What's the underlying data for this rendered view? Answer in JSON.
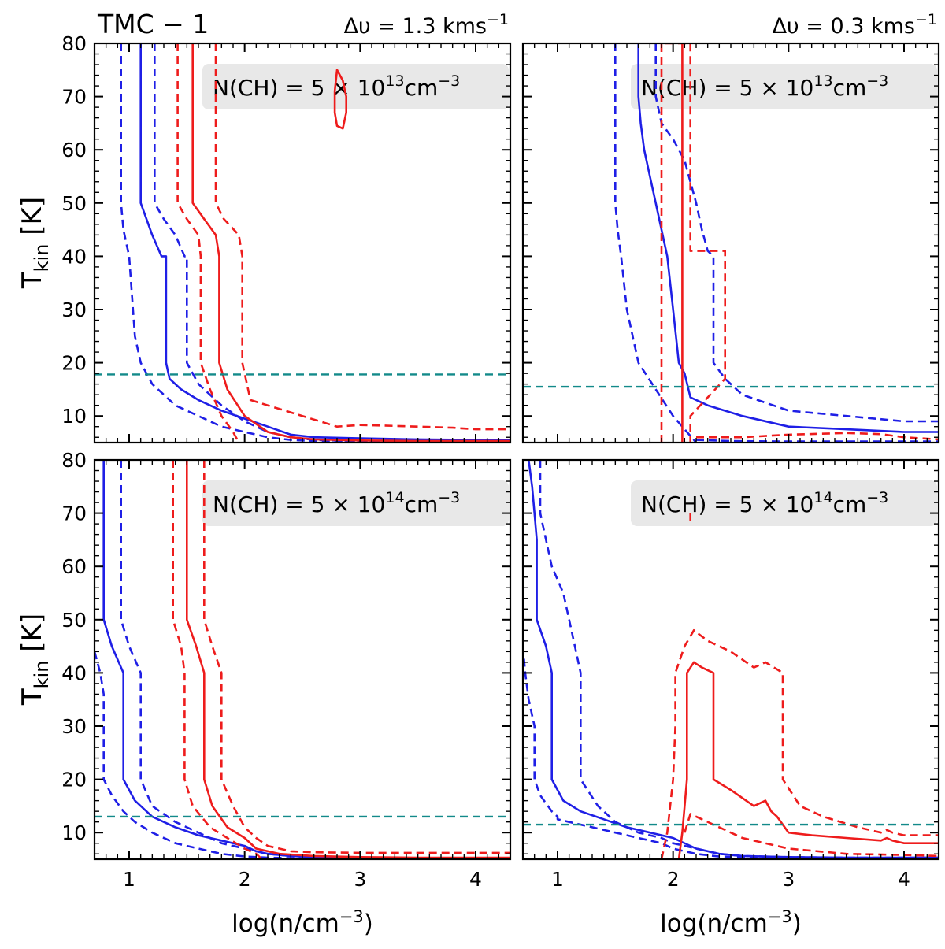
{
  "figure_title": "TMC − 1",
  "xlabel": "log(n/cm",
  "xlabel_sup": "−3",
  "xlabel_close": ")",
  "ylabel": "T",
  "ylabel_sub": "kin",
  "ylabel_unit": " [K]",
  "column_titles": [
    {
      "prefix": "Δυ = 1.3 kms",
      "sup": "−1"
    },
    {
      "prefix": "Δυ = 0.3 kms",
      "sup": "−1"
    }
  ],
  "colors": {
    "blue": "#1f1fe6",
    "red": "#ee1c1c",
    "teal": "#138a8a",
    "label_box": "#e8e8e8"
  },
  "chart_data": [
    {
      "type": "line",
      "panel": "top-left",
      "label": {
        "prefix": "N(CH) = 5 × 10",
        "sup": "13",
        "suffix": "cm",
        "sup2": "−3"
      },
      "xlim": [
        0.7,
        4.3
      ],
      "ylim": [
        5,
        80
      ],
      "xticks": [],
      "yticks": [
        10,
        20,
        30,
        40,
        50,
        60,
        70,
        80
      ],
      "hline": 17.8,
      "series": [
        {
          "color": "blue",
          "style": "dashed",
          "x": [
            0.93,
            0.93,
            0.95,
            1.0,
            1.05,
            1.1,
            1.2,
            1.4,
            1.6,
            1.8,
            2.0,
            2.2,
            2.4,
            2.6,
            3.0,
            3.5,
            4.0,
            4.3
          ],
          "y": [
            80,
            50,
            45,
            40,
            25,
            20,
            16,
            12,
            10,
            8,
            7,
            6,
            5.5,
            5.3,
            5.2,
            5.1,
            5.1,
            5.1
          ]
        },
        {
          "color": "blue",
          "style": "solid",
          "x": [
            1.1,
            1.1,
            1.15,
            1.2,
            1.28,
            1.32,
            1.32,
            1.35,
            1.45,
            1.6,
            1.8,
            2.0,
            2.2,
            2.4,
            2.6,
            3.0,
            3.5,
            4.0,
            4.3
          ],
          "y": [
            80,
            50,
            47,
            44,
            40,
            40,
            20,
            17,
            15,
            13,
            11,
            9.5,
            8,
            6.5,
            6,
            5.8,
            5.6,
            5.5,
            5.5
          ]
        },
        {
          "color": "blue",
          "style": "dashed",
          "x": [
            1.22,
            1.22,
            1.3,
            1.4,
            1.48,
            1.5,
            1.5,
            1.6,
            1.8,
            2.0,
            2.2,
            2.4,
            2.6,
            3.0,
            3.5,
            4.0,
            4.3
          ],
          "y": [
            80,
            50,
            47,
            44,
            40,
            40,
            20,
            16,
            12,
            9,
            7,
            6,
            5.5,
            5.3,
            5.2,
            5.2,
            5.2
          ]
        },
        {
          "color": "red",
          "style": "dashed",
          "x": [
            1.42,
            1.42,
            1.5,
            1.6,
            1.62,
            1.62,
            1.7,
            1.8,
            1.9,
            1.95
          ],
          "y": [
            80,
            50,
            47,
            44,
            40,
            20,
            15,
            10,
            7,
            5
          ]
        },
        {
          "color": "red",
          "style": "solid",
          "x": [
            1.55,
            1.55,
            1.65,
            1.75,
            1.78,
            1.78,
            1.85,
            2.0,
            2.2,
            2.4,
            2.6,
            3.0,
            3.5,
            4.0,
            4.3
          ],
          "y": [
            80,
            50,
            47,
            44,
            40,
            20,
            15,
            10,
            7,
            6,
            5.6,
            5.4,
            5.3,
            5.3,
            5.3
          ]
        },
        {
          "color": "red",
          "style": "dashed",
          "x": [
            1.75,
            1.75,
            1.82,
            1.95,
            1.98,
            1.98,
            2.05,
            2.2,
            2.5,
            2.8,
            3.0,
            3.2,
            3.5,
            3.8,
            4.0,
            4.3
          ],
          "y": [
            80,
            50,
            47,
            44,
            40,
            20,
            13,
            12,
            10,
            8,
            8.3,
            8.2,
            8,
            7.8,
            7.5,
            7.5
          ]
        },
        {
          "color": "red",
          "style": "solid",
          "closed": true,
          "x": [
            2.8,
            2.85,
            2.88,
            2.88,
            2.85,
            2.8,
            2.78,
            2.78,
            2.8
          ],
          "y": [
            75,
            73,
            70,
            67,
            64,
            64.5,
            67,
            71,
            75
          ]
        }
      ]
    },
    {
      "type": "line",
      "panel": "top-right",
      "label": {
        "prefix": "N(CH) = 5 × 10",
        "sup": "13",
        "suffix": "cm",
        "sup2": "−3"
      },
      "xlim": [
        0.7,
        4.3
      ],
      "ylim": [
        5,
        80
      ],
      "xticks": [],
      "yticks": [],
      "hline": 15.5,
      "series": [
        {
          "color": "blue",
          "style": "dashed",
          "x": [
            1.5,
            1.5,
            1.52,
            1.55,
            1.6,
            1.7,
            1.85,
            2.0,
            2.2
          ],
          "y": [
            80,
            50,
            45,
            40,
            30,
            20,
            15,
            10,
            5
          ]
        },
        {
          "color": "blue",
          "style": "solid",
          "x": [
            1.7,
            1.7,
            1.72,
            1.75,
            1.8,
            1.85,
            1.9,
            1.95,
            2.0,
            2.05,
            2.1,
            2.15,
            2.3,
            2.6,
            3.0,
            3.5,
            4.0,
            4.3
          ],
          "y": [
            80,
            70,
            65,
            60,
            55,
            50,
            45,
            40,
            30,
            20,
            18,
            13.5,
            12,
            10,
            8,
            7.5,
            7,
            7
          ]
        },
        {
          "color": "blue",
          "style": "dashed",
          "x": [
            1.85,
            1.85,
            1.9,
            2.0,
            2.1,
            2.2,
            2.25,
            2.3,
            2.35,
            2.35,
            2.45,
            2.6,
            3.0,
            3.5,
            4.0,
            4.3
          ],
          "y": [
            80,
            70,
            65,
            62,
            58,
            50,
            45,
            41,
            40,
            20,
            17,
            14,
            11,
            10,
            9,
            9
          ]
        },
        {
          "color": "red",
          "style": "dashed",
          "x": [
            1.9,
            1.9,
            2.15,
            2.15,
            2.45,
            2.45,
            2.15,
            2.15
          ],
          "y": [
            5,
            80,
            80,
            41,
            41,
            17,
            10,
            5
          ]
        },
        {
          "color": "red",
          "style": "solid",
          "x": [
            2.08,
            2.08
          ],
          "y": [
            5,
            80
          ]
        },
        {
          "color": "blue",
          "style": "dashed",
          "x": [
            2.2,
            2.5,
            3.0,
            3.5,
            4.0,
            4.3
          ],
          "y": [
            5.5,
            5.3,
            5.2,
            5.2,
            5.2,
            5.2
          ]
        },
        {
          "color": "red",
          "style": "dashed",
          "x": [
            2.2,
            2.6,
            3.0,
            3.5,
            3.8,
            4.0,
            4.3
          ],
          "y": [
            6,
            6,
            6.5,
            6.8,
            6.6,
            6,
            5.6
          ]
        }
      ]
    },
    {
      "type": "line",
      "panel": "bottom-left",
      "label": {
        "prefix": "N(CH) = 5 × 10",
        "sup": "14",
        "suffix": "cm",
        "sup2": "−3"
      },
      "xlim": [
        0.7,
        4.3
      ],
      "ylim": [
        5,
        80
      ],
      "xticks": [
        1,
        2,
        3,
        4
      ],
      "yticks": [
        10,
        20,
        30,
        40,
        50,
        60,
        70,
        80
      ],
      "hline": 13,
      "series": [
        {
          "color": "blue",
          "style": "dashed",
          "x": [
            0.7,
            0.75,
            0.78,
            0.78,
            0.85,
            0.95,
            1.05,
            1.2,
            1.4,
            1.6,
            1.8,
            2.0,
            2.2,
            2.4,
            2.6,
            3.0,
            3.5,
            4.0,
            4.3
          ],
          "y": [
            44,
            40,
            36,
            20,
            17,
            14,
            12,
            10,
            8,
            7,
            6,
            5.5,
            5.3,
            5.2,
            5.1,
            5.1,
            5.1,
            5.1,
            5.1
          ]
        },
        {
          "color": "blue",
          "style": "solid",
          "x": [
            0.78,
            0.78,
            0.85,
            0.95,
            0.95,
            1.05,
            1.2,
            1.4,
            1.6,
            1.8,
            2.0,
            2.1,
            2.2,
            2.4,
            2.6,
            3.0,
            3.5,
            4.0,
            4.3
          ],
          "y": [
            80,
            50,
            45,
            40,
            20,
            16,
            13,
            11,
            9.5,
            8.5,
            7.5,
            6.5,
            6,
            5.6,
            5.4,
            5.3,
            5.2,
            5.2,
            5.2
          ]
        },
        {
          "color": "blue",
          "style": "dashed",
          "x": [
            0.93,
            0.93,
            1.0,
            1.1,
            1.1,
            1.2,
            1.4,
            1.6,
            1.8,
            2.0,
            2.2,
            2.4,
            2.6,
            3.0,
            3.5,
            4.0,
            4.3
          ],
          "y": [
            80,
            50,
            45,
            40,
            20,
            15,
            12,
            10,
            8,
            7,
            6,
            5.6,
            5.4,
            5.3,
            5.2,
            5.2,
            5.2
          ]
        },
        {
          "color": "red",
          "style": "dashed",
          "x": [
            1.38,
            1.38,
            1.45,
            1.48,
            1.48,
            1.55,
            1.7,
            1.85,
            2.0,
            2.1,
            2.15
          ],
          "y": [
            80,
            50,
            45,
            40,
            20,
            15,
            11,
            9,
            7,
            6,
            5
          ]
        },
        {
          "color": "red",
          "style": "solid",
          "x": [
            1.5,
            1.5,
            1.58,
            1.65,
            1.65,
            1.72,
            1.85,
            2.0,
            2.1,
            2.3,
            2.6,
            3.0,
            3.5,
            4.0,
            4.3
          ],
          "y": [
            80,
            50,
            45,
            40,
            20,
            15,
            11,
            9,
            7,
            6,
            5.6,
            5.4,
            5.3,
            5.3,
            5.3
          ]
        },
        {
          "color": "red",
          "style": "dashed",
          "x": [
            1.65,
            1.65,
            1.72,
            1.8,
            1.8,
            1.9,
            2.0,
            2.1,
            2.2,
            2.4,
            2.6,
            3.0,
            3.5,
            4.0,
            4.3
          ],
          "y": [
            80,
            50,
            45,
            40,
            20,
            15,
            11,
            9,
            7.5,
            6.5,
            6.3,
            6.2,
            6.2,
            6.2,
            6.2
          ]
        }
      ]
    },
    {
      "type": "line",
      "panel": "bottom-right",
      "label": {
        "prefix": "N(CH) = 5 × 10",
        "sup": "14",
        "suffix": "cm",
        "sup2": "−3"
      },
      "xlim": [
        0.7,
        4.3
      ],
      "ylim": [
        5,
        80
      ],
      "xticks": [
        1,
        2,
        3,
        4
      ],
      "yticks": [],
      "hline": 11.5,
      "series": [
        {
          "color": "blue",
          "style": "dashed",
          "x": [
            0.7,
            0.72,
            0.75,
            0.8,
            0.8,
            0.85,
            0.95,
            1.0,
            1.0,
            1.1,
            1.3,
            1.5,
            1.7,
            1.9,
            2.0,
            2.2,
            2.4,
            2.6,
            3.0,
            3.5,
            4.0,
            4.3
          ],
          "y": [
            45,
            40,
            35,
            30,
            20,
            17,
            14,
            13,
            12.5,
            12,
            11,
            10,
            9,
            8,
            7,
            6,
            5.5,
            5.3,
            5.2,
            5.1,
            5.1,
            5.1
          ]
        },
        {
          "color": "blue",
          "style": "solid",
          "x": [
            0.75,
            0.78,
            0.8,
            0.82,
            0.82,
            0.9,
            0.95,
            0.95,
            1.05,
            1.2,
            1.4,
            1.6,
            1.8,
            2.0,
            2.2,
            2.4,
            2.6,
            3.0,
            3.5,
            4.0,
            4.3
          ],
          "y": [
            80,
            75,
            70,
            65,
            50,
            45,
            40,
            20,
            16,
            14,
            12.5,
            11,
            10,
            9,
            7,
            6,
            5.6,
            5.4,
            5.3,
            5.3,
            5.3
          ]
        },
        {
          "color": "blue",
          "style": "dashed",
          "x": [
            0.85,
            0.85,
            0.9,
            0.95,
            1.05,
            1.1,
            1.15,
            1.2,
            1.2,
            1.35,
            1.5,
            1.7,
            1.9,
            2.0,
            2.2,
            2.4,
            2.6,
            3.0,
            3.5,
            4.0,
            4.3
          ],
          "y": [
            80,
            70,
            65,
            60,
            55,
            50,
            45,
            40,
            20,
            15,
            12,
            10,
            9,
            8,
            7,
            6,
            5.6,
            5.4,
            5.3,
            5.3,
            5.3
          ]
        },
        {
          "color": "red",
          "style": "dashed",
          "x": [
            1.9,
            1.95,
            2.0,
            2.02,
            2.02,
            2.1,
            2.18,
            2.3,
            2.5,
            2.7,
            2.8,
            2.95,
            2.95,
            3.1,
            3.3,
            3.6,
            3.8,
            3.85,
            3.9,
            4.0,
            4.3
          ],
          "y": [
            5,
            10,
            20,
            30,
            40,
            45,
            48,
            46,
            44,
            41,
            42,
            40,
            20,
            15,
            13,
            11,
            10,
            10.5,
            10,
            9.5,
            9.5
          ]
        },
        {
          "color": "red",
          "style": "solid",
          "x": [
            2.05,
            2.08,
            2.12,
            2.12,
            2.18,
            2.25,
            2.35,
            2.35,
            2.5,
            2.7,
            2.8,
            2.85,
            2.9,
            3.0,
            3.2,
            3.5,
            3.8,
            3.85,
            3.9,
            4.0,
            4.3
          ],
          "y": [
            5,
            10,
            20,
            40,
            42,
            41,
            40,
            20,
            18,
            15,
            16,
            14,
            13,
            10,
            9.5,
            9,
            8.5,
            9,
            8.5,
            8,
            8
          ]
        },
        {
          "color": "red",
          "style": "dashed",
          "x": [
            2.1,
            2.15,
            2.25,
            2.4,
            2.6,
            3.0,
            3.5,
            4.0,
            4.3
          ],
          "y": [
            10,
            13.5,
            12.5,
            11,
            9,
            7,
            6,
            5.8,
            5.6
          ]
        },
        {
          "color": "red",
          "style": "solid",
          "x": [
            2.15,
            2.15
          ],
          "y": [
            68.5,
            70
          ]
        }
      ]
    }
  ]
}
